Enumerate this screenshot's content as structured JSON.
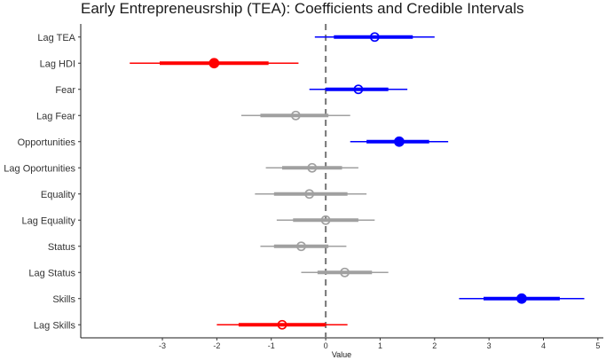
{
  "chart_data": {
    "type": "scatter",
    "subtype": "coefficient-interval-plot",
    "title": "Early Entrepreneusrship (TEA): Coefficients and Credible Intervals",
    "xlabel": "Value",
    "ylabel": "",
    "xlim": [
      -4.5,
      5.1
    ],
    "xticks": [
      -3,
      -2,
      -1,
      0,
      1,
      2,
      3,
      4,
      5
    ],
    "reference_line": 0,
    "grid": false,
    "legend": "none",
    "colors": {
      "positive": "#0000ff",
      "negative": "#ff0000",
      "insignificant": "#a0a0a0",
      "reference": "#808080"
    },
    "series": [
      {
        "label": "Lag TEA",
        "estimate": 0.9,
        "inner": [
          0.15,
          1.6
        ],
        "outer": [
          -0.2,
          2.0
        ],
        "color": "positive",
        "marker": "open"
      },
      {
        "label": "Lag HDI",
        "estimate": -2.05,
        "inner": [
          -3.05,
          -1.05
        ],
        "outer": [
          -3.6,
          -0.5
        ],
        "color": "negative",
        "marker": "filled"
      },
      {
        "label": "Fear",
        "estimate": 0.6,
        "inner": [
          0.0,
          1.15
        ],
        "outer": [
          -0.3,
          1.5
        ],
        "color": "positive",
        "marker": "open"
      },
      {
        "label": "Lag Fear",
        "estimate": -0.55,
        "inner": [
          -1.2,
          0.05
        ],
        "outer": [
          -1.55,
          0.45
        ],
        "color": "insignificant",
        "marker": "open"
      },
      {
        "label": "Opportunities",
        "estimate": 1.35,
        "inner": [
          0.75,
          1.9
        ],
        "outer": [
          0.45,
          2.25
        ],
        "color": "positive",
        "marker": "filled"
      },
      {
        "label": "Lag Oportunities",
        "estimate": -0.25,
        "inner": [
          -0.8,
          0.3
        ],
        "outer": [
          -1.1,
          0.6
        ],
        "color": "insignificant",
        "marker": "open"
      },
      {
        "label": "Equality",
        "estimate": -0.3,
        "inner": [
          -0.95,
          0.4
        ],
        "outer": [
          -1.3,
          0.75
        ],
        "color": "insignificant",
        "marker": "open"
      },
      {
        "label": "Lag Equality",
        "estimate": 0.0,
        "inner": [
          -0.6,
          0.6
        ],
        "outer": [
          -0.9,
          0.9
        ],
        "color": "insignificant",
        "marker": "open"
      },
      {
        "label": "Status",
        "estimate": -0.45,
        "inner": [
          -0.95,
          0.05
        ],
        "outer": [
          -1.2,
          0.38
        ],
        "color": "insignificant",
        "marker": "open"
      },
      {
        "label": "Lag Status",
        "estimate": 0.35,
        "inner": [
          -0.15,
          0.85
        ],
        "outer": [
          -0.45,
          1.15
        ],
        "color": "insignificant",
        "marker": "open"
      },
      {
        "label": "Skills",
        "estimate": 3.6,
        "inner": [
          2.9,
          4.3
        ],
        "outer": [
          2.45,
          4.75
        ],
        "color": "positive",
        "marker": "filled"
      },
      {
        "label": "Lag Skills",
        "estimate": -0.8,
        "inner": [
          -1.6,
          0.0
        ],
        "outer": [
          -2.0,
          0.4
        ],
        "color": "negative",
        "marker": "open"
      }
    ]
  }
}
